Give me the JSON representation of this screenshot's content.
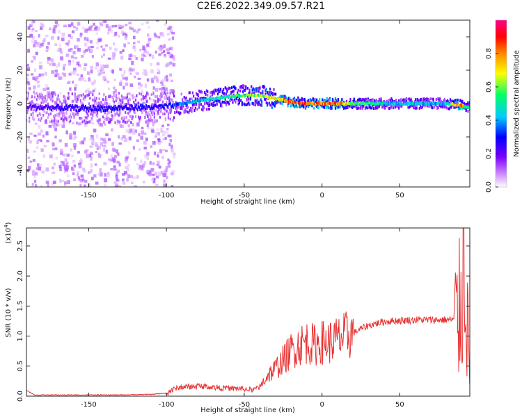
{
  "title": "C2E6.2022.349.09.57.R21",
  "chart_data": [
    {
      "type": "heatmap",
      "xlabel": "Height of straight line (km)",
      "ylabel": "Frequency (Hz)",
      "xlim": [
        -190,
        95
      ],
      "ylim": [
        -50,
        50
      ],
      "xticks": [
        -150,
        -100,
        -50,
        0,
        50
      ],
      "yticks": [
        -40,
        -20,
        0,
        20,
        40
      ],
      "colorbar": {
        "label": "Normalized spectral amplitude",
        "range": [
          0.0,
          1.0
        ],
        "ticks": [
          "0.0",
          "0.2",
          "0.4",
          "0.6",
          "0.8"
        ],
        "colors": [
          "#ffffff",
          "#cc88ff",
          "#7a00ff",
          "#0000ff",
          "#00ccff",
          "#00ff66",
          "#ffff00",
          "#ff8800",
          "#ff0000",
          "#ff0088"
        ]
      },
      "ridge": {
        "x": [
          -190,
          -150,
          -100,
          -90,
          -70,
          -50,
          -40,
          -30,
          -20,
          -10,
          0,
          10,
          20,
          50,
          80,
          90,
          92
        ],
        "y": [
          -2,
          -3,
          -2,
          0,
          3,
          5,
          5,
          3,
          1,
          0,
          0,
          0,
          0,
          0,
          0,
          -1,
          -2
        ],
        "amplitude": [
          0.25,
          0.3,
          0.3,
          0.4,
          0.5,
          0.55,
          0.6,
          0.65,
          0.8,
          0.8,
          0.8,
          0.8,
          0.55,
          0.45,
          0.45,
          0.85,
          0.5
        ]
      },
      "grid": false
    },
    {
      "type": "line",
      "xlabel": "Height of straight line (km)",
      "ylabel": "SNR (10 * v/v)",
      "yscale_label": "(x10",
      "yscale_exponent": "4",
      "xlim": [
        -190,
        95
      ],
      "ylim": [
        0.0,
        2.8
      ],
      "xticks": [
        -150,
        -100,
        -50,
        0,
        50
      ],
      "yticks": [
        "0.0",
        "0.5",
        "1.0",
        "1.5",
        "2.0",
        "2.5"
      ],
      "series": [
        {
          "color": "#e83030",
          "x": [
            -190,
            -185,
            -170,
            -150,
            -130,
            -110,
            -100,
            -95,
            -90,
            -80,
            -70,
            -60,
            -50,
            -45,
            -40,
            -35,
            -30,
            -25,
            -20,
            -15,
            -10,
            -5,
            0,
            5,
            10,
            15,
            20,
            25,
            30,
            40,
            50,
            60,
            70,
            80,
            85,
            88,
            90,
            92,
            93,
            95
          ],
          "y": [
            0.1,
            0.02,
            0.02,
            0.02,
            0.02,
            0.03,
            0.05,
            0.12,
            0.15,
            0.17,
            0.15,
            0.13,
            0.12,
            0.1,
            0.15,
            0.35,
            0.45,
            0.6,
            0.75,
            0.85,
            0.9,
            0.85,
            0.9,
            0.9,
            0.95,
            1.0,
            1.05,
            1.12,
            1.18,
            1.24,
            1.26,
            1.27,
            1.27,
            1.27,
            1.28,
            1.3,
            2.0,
            2.8,
            1.5,
            0.2
          ]
        }
      ],
      "grid": false
    }
  ]
}
